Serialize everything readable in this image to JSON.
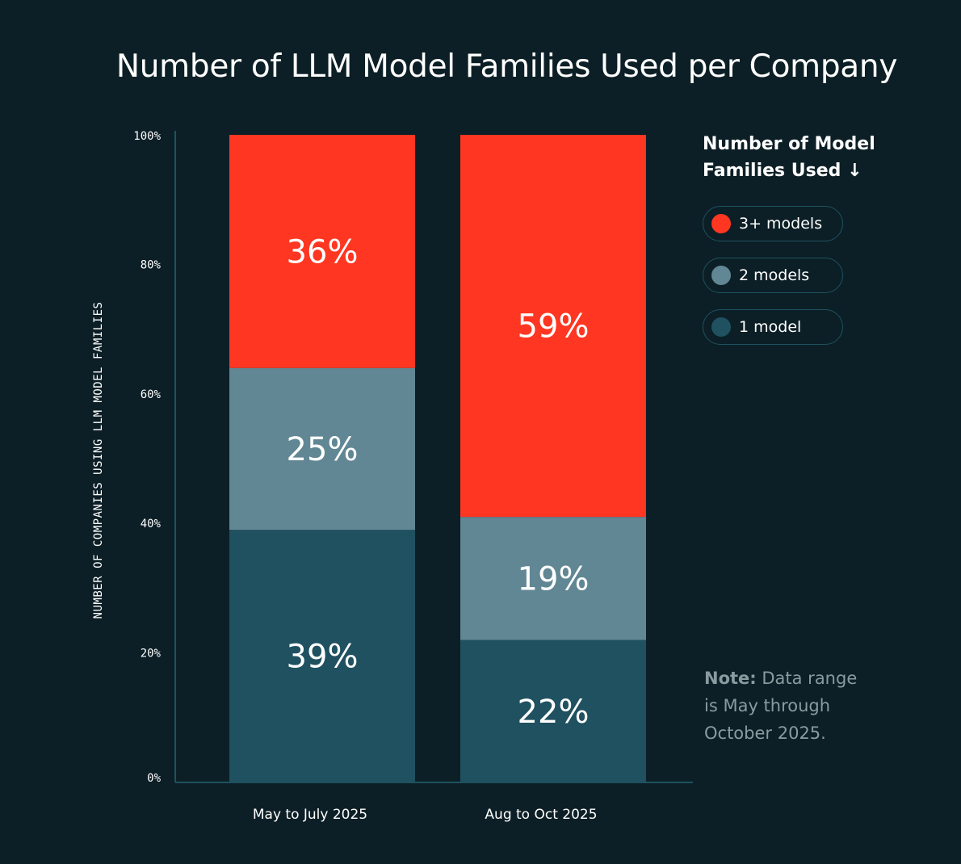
{
  "chart_data": {
    "type": "bar",
    "stacked": true,
    "title": "Number of LLM Model Families Used per Company",
    "xlabel": "",
    "ylabel": "NUMBER OF COMPANIES USING LLM MODEL FAMILIES",
    "ylim": [
      0,
      100
    ],
    "yticks": [
      "0%",
      "20%",
      "40%",
      "60%",
      "80%",
      "100%"
    ],
    "categories": [
      "May to July 2025",
      "Aug to Oct 2025"
    ],
    "series": [
      {
        "name": "1 model",
        "color": "#1f5160",
        "values": [
          39,
          22
        ]
      },
      {
        "name": "2 models",
        "color": "#618794",
        "values": [
          25,
          19
        ]
      },
      {
        "name": "3+ models",
        "color": "#ff3621",
        "values": [
          36,
          59
        ]
      }
    ],
    "legend_title": "Number of Model Families Used ↓",
    "legend_placement": "right"
  },
  "legend_order": [
    "3+ models",
    "2 models",
    "1 model"
  ],
  "note": {
    "label": "Note:",
    "text": " Data range is May through October 2025."
  },
  "colors": {
    "background": "#0c1f26",
    "axis": "#1f5160"
  }
}
